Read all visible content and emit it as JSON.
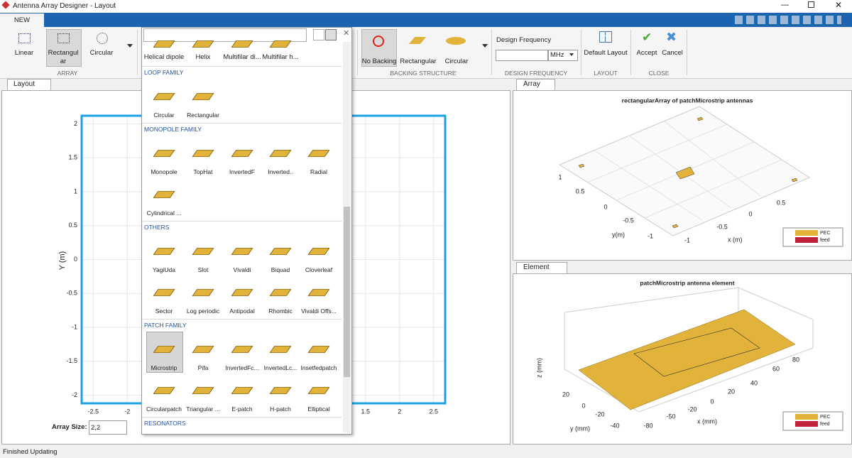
{
  "window": {
    "title": "Antenna Array Designer - Layout"
  },
  "toolstrip": {
    "tab": "NEW",
    "array_buttons": [
      "Linear",
      "Rectangular",
      "Circular"
    ],
    "array_section": "ARRAY",
    "backing_buttons": [
      "No Backing",
      "Rectangular",
      "Circular"
    ],
    "backing_section": "BACKING STRUCTURE",
    "design_frequency_label": "Design Frequency",
    "frequency_unit": "MHz",
    "design_frequency_section": "DESIGN FREQUENCY",
    "layout_button": "Default Layout",
    "layout_section": "LAYOUT",
    "accept": "Accept",
    "cancel": "Cancel",
    "close_section": "CLOSE"
  },
  "gallery": {
    "top_row": [
      "Helical dipole",
      "Helix",
      "Multifilar di...",
      "Multifilar h..."
    ],
    "groups": [
      {
        "title": "LOOP FAMILY",
        "items": [
          "Circular",
          "Rectangular"
        ]
      },
      {
        "title": "MONOPOLE FAMILY",
        "items": [
          "Monopole",
          "TopHat",
          "InvertedF",
          "Inverted..",
          "Radial",
          "Cylindrical ..."
        ]
      },
      {
        "title": "OTHERS",
        "items": [
          "YagiUda",
          "Slot",
          "Vivaldi",
          "Biquad",
          "Cloverleaf",
          "Sector",
          "Log periodic",
          "Antipodal",
          "Rhombic",
          "Vivaldi Offs..."
        ]
      },
      {
        "title": "PATCH FAMILY",
        "items": [
          "Microstrip",
          "Pifa",
          "InvertedFc...",
          "InvertedLc...",
          "Insetfedpatch",
          "Circularpatch",
          "Triangular ...",
          "E-patch",
          "H-patch",
          "Elliptical"
        ]
      },
      {
        "title": "RESONATORS",
        "items": []
      }
    ]
  },
  "layout_panel": {
    "tab": "Layout",
    "y_label": "Y (m)",
    "xlim": [
      -2.67,
      2.67
    ],
    "ylim": [
      -2.12,
      2.12
    ],
    "xticks": [
      -2.5,
      -2,
      1.5,
      2,
      2.5
    ],
    "yticks": [
      2,
      1.5,
      1,
      0.5,
      0,
      -0.5,
      -1,
      -1.5,
      -2
    ],
    "array_size_label": "Array Size:",
    "array_size_value": "2,2"
  },
  "array_panel": {
    "tab": "Array",
    "title": "rectangularArray of patchMicrostrip antennas",
    "y_label": "y(m)",
    "x_label": "x (m)",
    "y_ticks": [
      1,
      0.5,
      0,
      -0.5,
      -1
    ],
    "x_ticks": [
      -1,
      -0.5,
      0,
      0.5
    ],
    "legend": [
      "PEC",
      "feed"
    ]
  },
  "element_panel": {
    "tab": "Element",
    "title": "patchMicrostrip antenna element",
    "z_label": "z (mm)",
    "y_label": "y (mm)",
    "x_label": "x (mm)",
    "y_ticks": [
      20,
      0,
      -20,
      -40
    ],
    "x_ticks": [
      -80,
      -50,
      -20,
      0,
      20,
      40,
      60,
      80
    ],
    "legend": [
      "PEC",
      "feed"
    ]
  },
  "status": "Finished Updating"
}
